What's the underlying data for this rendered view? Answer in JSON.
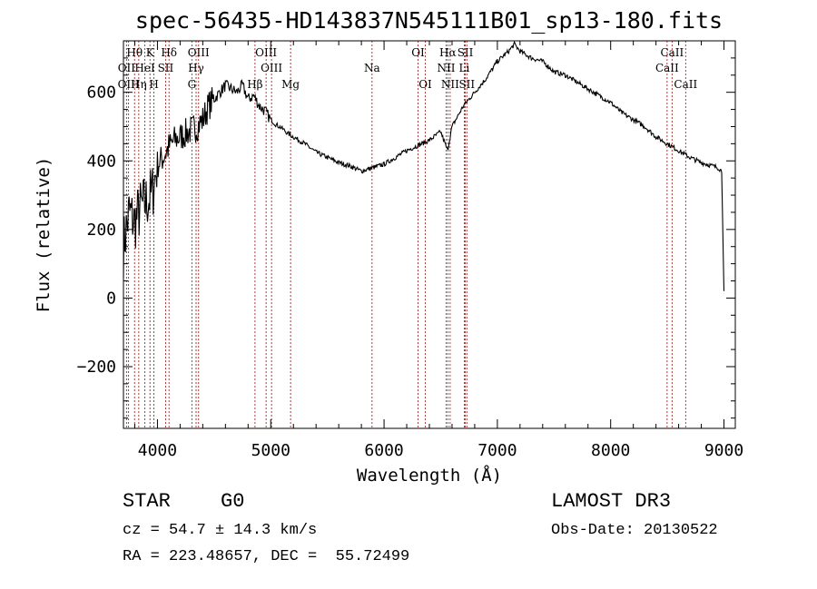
{
  "chart_data": {
    "type": "line",
    "title": "spec-56435-HD143837N545111B01_sp13-180.fits",
    "xlabel": "Wavelength (Å)",
    "ylabel": "Flux (relative)",
    "xlim": [
      3700,
      9100
    ],
    "ylim": [
      -380,
      750
    ],
    "x_ticks": [
      4000,
      5000,
      6000,
      7000,
      8000,
      9000
    ],
    "y_ticks": [
      -200,
      0,
      200,
      400,
      600
    ],
    "series": [
      {
        "name": "flux",
        "x": [
          3700,
          3750,
          3800,
          3850,
          3900,
          3950,
          4000,
          4050,
          4100,
          4150,
          4200,
          4250,
          4300,
          4350,
          4400,
          4450,
          4500,
          4550,
          4600,
          4650,
          4700,
          4750,
          4800,
          4850,
          4900,
          4950,
          5000,
          5050,
          5100,
          5150,
          5200,
          5300,
          5400,
          5500,
          5600,
          5700,
          5800,
          5900,
          6000,
          6100,
          6200,
          6300,
          6400,
          6500,
          6560,
          6600,
          6700,
          6800,
          6900,
          7000,
          7100,
          7150,
          7200,
          7300,
          7400,
          7500,
          7600,
          7700,
          7800,
          7900,
          8000,
          8100,
          8200,
          8300,
          8400,
          8500,
          8600,
          8700,
          8800,
          8900,
          8950,
          8980,
          9000
        ],
        "y": [
          150,
          250,
          220,
          260,
          280,
          300,
          390,
          410,
          440,
          460,
          470,
          480,
          490,
          500,
          520,
          560,
          580,
          600,
          620,
          610,
          600,
          620,
          580,
          590,
          560,
          545,
          520,
          505,
          495,
          480,
          470,
          450,
          425,
          410,
          395,
          385,
          370,
          380,
          390,
          410,
          430,
          445,
          460,
          485,
          430,
          500,
          560,
          600,
          640,
          690,
          720,
          740,
          720,
          700,
          690,
          660,
          650,
          630,
          610,
          590,
          570,
          540,
          520,
          500,
          470,
          450,
          430,
          410,
          395,
          385,
          380,
          370,
          20
        ]
      }
    ],
    "spectral_lines": [
      {
        "label": "Hθ",
        "wavelength": 3798,
        "row": 0
      },
      {
        "label": "OII",
        "wavelength": 3727,
        "row": 1
      },
      {
        "label": "OIII",
        "wavelength": 3745,
        "row": 2
      },
      {
        "label": "K",
        "wavelength": 3934,
        "row": 0
      },
      {
        "label": "HeI",
        "wavelength": 3889,
        "row": 1
      },
      {
        "label": "Hη",
        "wavelength": 3835,
        "row": 2
      },
      {
        "label": "Hδ",
        "wavelength": 4102,
        "row": 0
      },
      {
        "label": "SII",
        "wavelength": 4072,
        "row": 1
      },
      {
        "label": "H",
        "wavelength": 3969,
        "row": 2
      },
      {
        "label": "OIII",
        "wavelength": 4363,
        "row": 0
      },
      {
        "label": "Hγ",
        "wavelength": 4341,
        "row": 1
      },
      {
        "label": "G",
        "wavelength": 4304,
        "row": 2
      },
      {
        "label": "OIII",
        "wavelength": 4959,
        "row": 0
      },
      {
        "label": "OIII",
        "wavelength": 5007,
        "row": 1
      },
      {
        "label": "Hβ",
        "wavelength": 4861,
        "row": 2
      },
      {
        "label": "Mg",
        "wavelength": 5175,
        "row": 2
      },
      {
        "label": "Na",
        "wavelength": 5894,
        "row": 1
      },
      {
        "label": "OI",
        "wavelength": 6300,
        "row": 0
      },
      {
        "label": "OI",
        "wavelength": 6364,
        "row": 2
      },
      {
        "label": "Hα",
        "wavelength": 6563,
        "row": 0
      },
      {
        "label": "NII",
        "wavelength": 6548,
        "row": 1
      },
      {
        "label": "NII",
        "wavelength": 6583,
        "row": 2
      },
      {
        "label": "SII",
        "wavelength": 6717,
        "row": 0
      },
      {
        "label": "Li",
        "wavelength": 6708,
        "row": 1
      },
      {
        "label": "SII",
        "wavelength": 6731,
        "row": 2
      },
      {
        "label": "CaII",
        "wavelength": 8542,
        "row": 0
      },
      {
        "label": "CaII",
        "wavelength": 8498,
        "row": 1
      },
      {
        "label": "CaII",
        "wavelength": 8662,
        "row": 2
      }
    ]
  },
  "info": {
    "object_class": "STAR",
    "subclass": "G0",
    "survey": "LAMOST DR3",
    "redshift": "cz = 54.7 ± 14.3 km/s",
    "obs_date": "Obs-Date: 20130522",
    "coords": "RA = 223.48657, DEC =  55.72499"
  }
}
